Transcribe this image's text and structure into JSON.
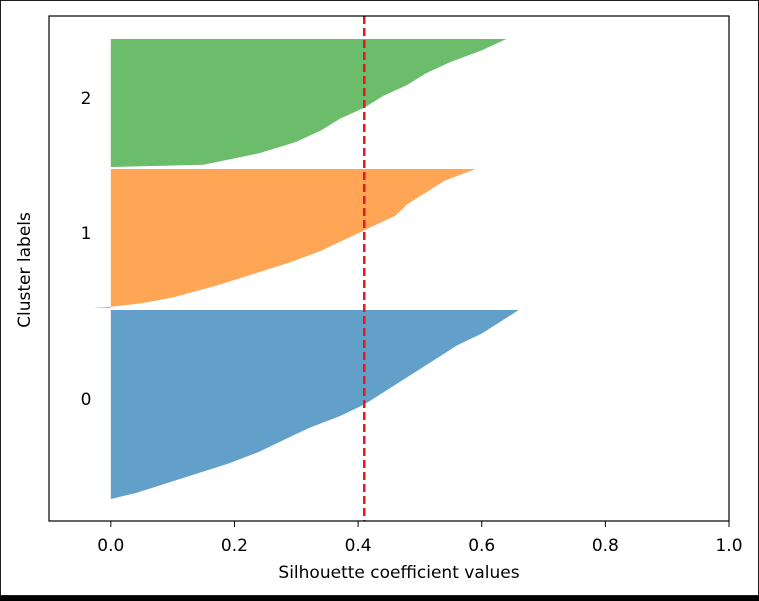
{
  "chart_data": {
    "type": "area",
    "title": "",
    "xlabel": "Silhouette coefficient values",
    "ylabel": "Cluster labels",
    "xlim": [
      -0.1,
      1.0
    ],
    "xticks": [
      0.0,
      0.2,
      0.4,
      0.6,
      0.8,
      1.0
    ],
    "xtick_labels": [
      "0.0",
      "0.2",
      "0.4",
      "0.6",
      "0.8",
      "1.0"
    ],
    "yticks": [],
    "grid": false,
    "average_silhouette": 0.41,
    "average_line_color": "#e31a1c",
    "series": [
      {
        "label": "0",
        "color": "#1f77b4",
        "sizes_and_silhouettes": [
          [
            0,
            0.66
          ],
          [
            10,
            0.63
          ],
          [
            20,
            0.6
          ],
          [
            30,
            0.56
          ],
          [
            40,
            0.53
          ],
          [
            50,
            0.5
          ],
          [
            60,
            0.47
          ],
          [
            70,
            0.44
          ],
          [
            80,
            0.41
          ],
          [
            90,
            0.37
          ],
          [
            100,
            0.32
          ],
          [
            110,
            0.28
          ],
          [
            120,
            0.24
          ],
          [
            130,
            0.19
          ],
          [
            140,
            0.13
          ],
          [
            150,
            0.07
          ],
          [
            155,
            0.04
          ],
          [
            160,
            0.0
          ]
        ]
      },
      {
        "label": "1",
        "color": "#ff7f0e",
        "sizes_and_silhouettes": [
          [
            0,
            0.59
          ],
          [
            10,
            0.54
          ],
          [
            20,
            0.51
          ],
          [
            30,
            0.48
          ],
          [
            40,
            0.46
          ],
          [
            50,
            0.42
          ],
          [
            60,
            0.38
          ],
          [
            70,
            0.34
          ],
          [
            80,
            0.29
          ],
          [
            90,
            0.23
          ],
          [
            100,
            0.17
          ],
          [
            110,
            0.1
          ],
          [
            115,
            0.05
          ],
          [
            118,
            0.0
          ],
          [
            119,
            -0.03
          ]
        ]
      },
      {
        "label": "2",
        "color": "#2ca02c",
        "sizes_and_silhouettes": [
          [
            0,
            0.64
          ],
          [
            10,
            0.6
          ],
          [
            20,
            0.55
          ],
          [
            30,
            0.51
          ],
          [
            40,
            0.48
          ],
          [
            50,
            0.44
          ],
          [
            60,
            0.41
          ],
          [
            70,
            0.37
          ],
          [
            80,
            0.34
          ],
          [
            90,
            0.3
          ],
          [
            100,
            0.24
          ],
          [
            110,
            0.15
          ],
          [
            112,
            0.0
          ]
        ]
      }
    ]
  }
}
